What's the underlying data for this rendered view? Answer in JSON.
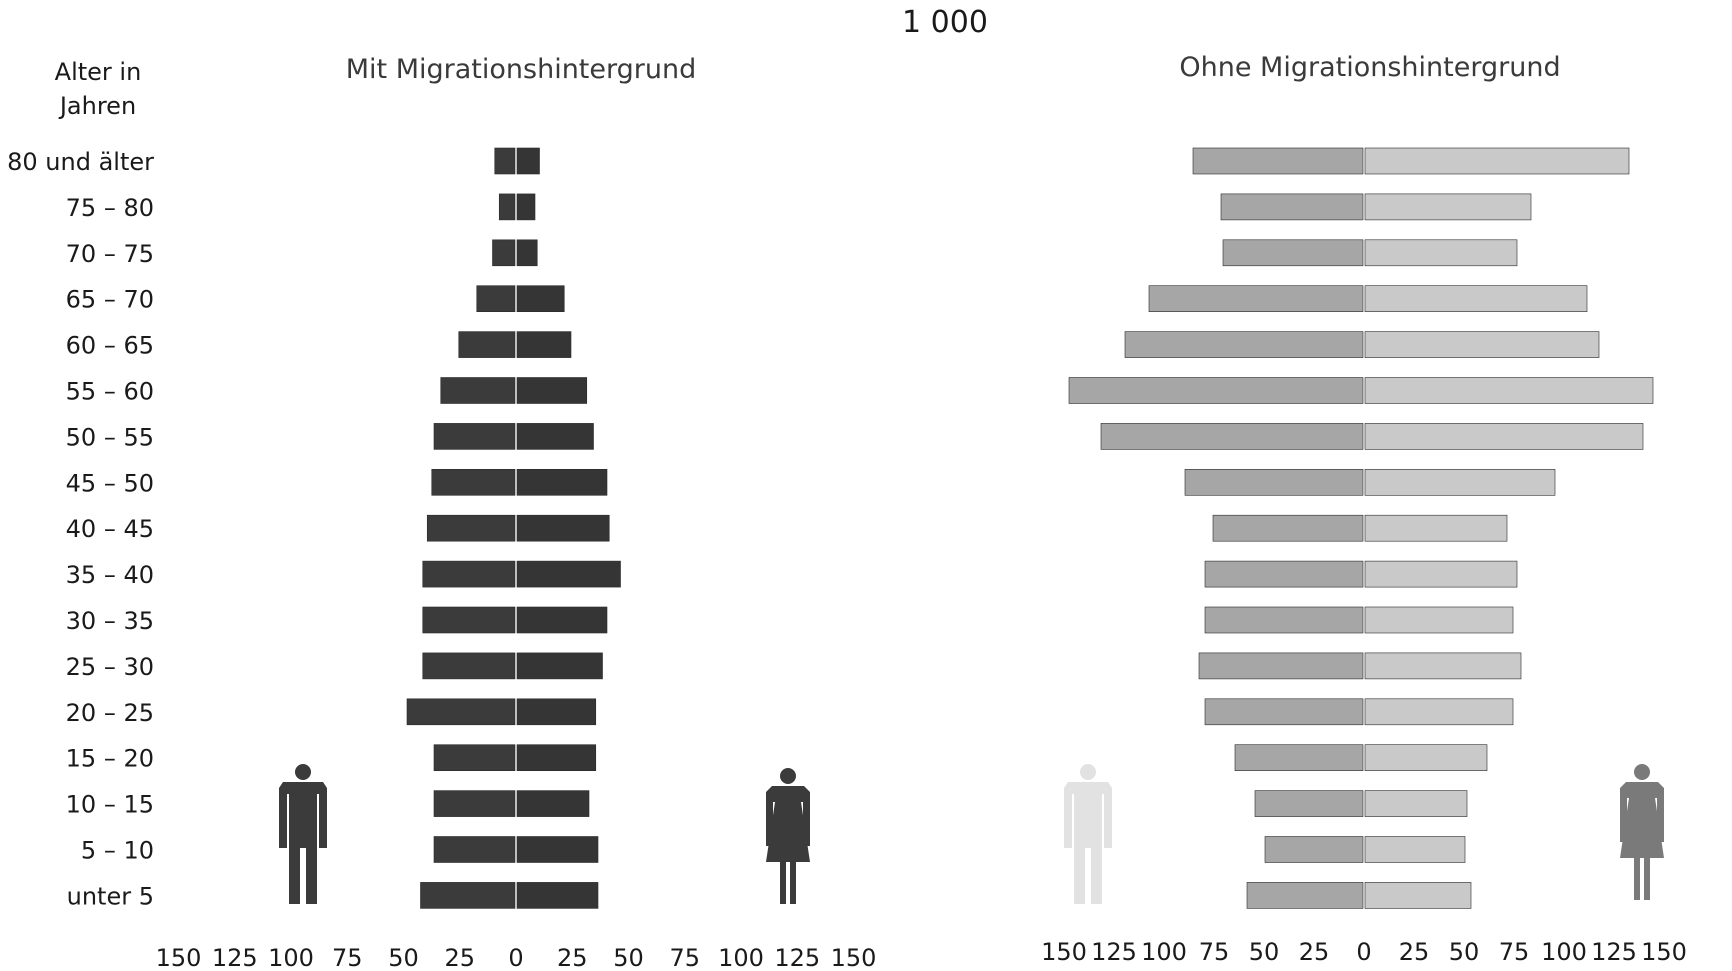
{
  "unit_label": "1 000",
  "age_header": [
    "Alter in",
    "Jahren"
  ],
  "colors": {
    "mit_male": "#3b3b3b",
    "mit_female": "#353535",
    "ohne_male": "#a6a6a6",
    "ohne_female": "#c9c9c9",
    "icon_dark": "#3b3b3b",
    "icon_light": "#e2e2e2",
    "icon_gray": "#7a7a7a"
  },
  "icons": {
    "mit_male": "male-figure-icon",
    "mit_female": "female-figure-icon",
    "ohne_male": "male-figure-icon",
    "ohne_female": "female-figure-icon"
  },
  "chart_data": [
    {
      "type": "bar",
      "subtype": "population-pyramid",
      "title": "Mit Migrationshintergrund",
      "categories": [
        "80 und älter",
        "75 – 80",
        "70 – 75",
        "65 – 70",
        "60 – 65",
        "55 – 60",
        "50 – 55",
        "45 – 50",
        "40 – 45",
        "35 – 40",
        "30 – 35",
        "25 – 30",
        "20 – 25",
        "15 – 20",
        "10 – 15",
        "5 – 10",
        "unter 5"
      ],
      "series": [
        {
          "side": "left",
          "values": [
            9,
            7,
            10,
            17,
            25,
            33,
            36,
            37,
            39,
            41,
            41,
            41,
            48,
            36,
            36,
            36,
            42
          ]
        },
        {
          "side": "right",
          "values": [
            10,
            8,
            9,
            21,
            24,
            31,
            34,
            40,
            41,
            46,
            40,
            38,
            35,
            35,
            32,
            36,
            36
          ]
        }
      ],
      "xlim": [
        -150,
        150
      ],
      "xticks": [
        150,
        125,
        100,
        75,
        50,
        25,
        0,
        25,
        50,
        75,
        100,
        125,
        150
      ]
    },
    {
      "type": "bar",
      "subtype": "population-pyramid",
      "title": "Ohne Migrationshintergrund",
      "categories": [
        "80 und älter",
        "75 – 80",
        "70 – 75",
        "65 – 70",
        "60 – 65",
        "55 – 60",
        "50 – 55",
        "45 – 50",
        "40 – 45",
        "35 – 40",
        "30 – 35",
        "25 – 30",
        "20 – 25",
        "15 – 20",
        "10 – 15",
        "5 – 10",
        "unter 5"
      ],
      "series": [
        {
          "side": "left",
          "values": [
            85,
            71,
            70,
            107,
            119,
            147,
            131,
            89,
            75,
            79,
            79,
            82,
            79,
            64,
            54,
            49,
            58
          ]
        },
        {
          "side": "right",
          "values": [
            132,
            83,
            76,
            111,
            117,
            144,
            139,
            95,
            71,
            76,
            74,
            78,
            74,
            61,
            51,
            50,
            53
          ]
        }
      ],
      "xlim": [
        -150,
        150
      ],
      "xticks": [
        150,
        125,
        100,
        75,
        50,
        25,
        0,
        25,
        50,
        75,
        100,
        125,
        150
      ]
    }
  ]
}
